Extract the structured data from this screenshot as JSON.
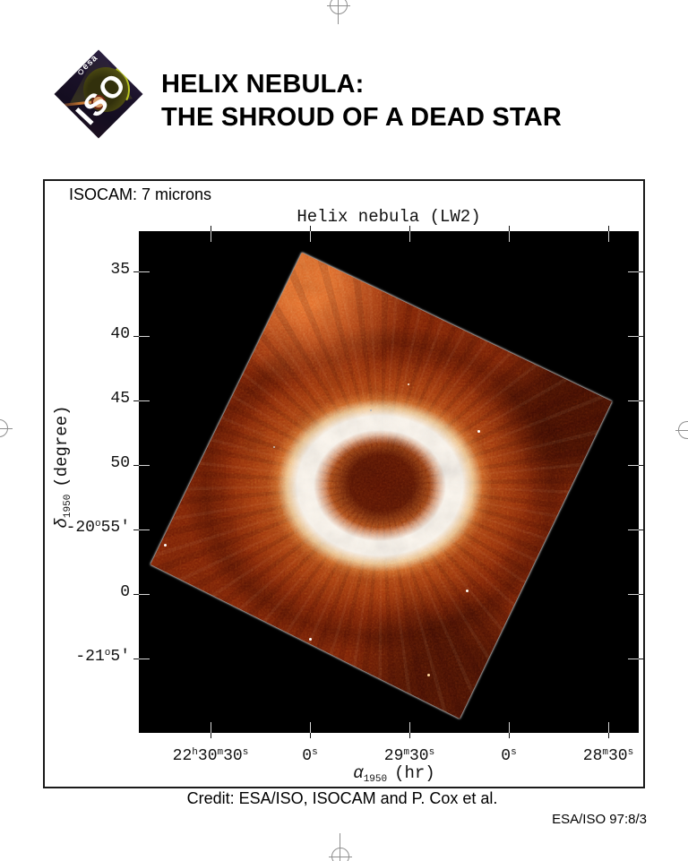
{
  "header": {
    "title_line1": "HELIX NEBULA:",
    "title_line2": "THE SHROUD OF A DEAD STAR"
  },
  "logo": {
    "esa_label": "esa",
    "iso_label": "ISO"
  },
  "figure": {
    "instrument_label": "ISOCAM: 7 microns",
    "plot": {
      "title": "Helix nebula (LW2)",
      "x_axis": {
        "symbol": "α",
        "subscript": "1950",
        "unit": "(hr)",
        "ticks": [
          [
            [
              "22",
              0
            ],
            [
              "h",
              1
            ],
            [
              "30",
              0
            ],
            [
              "m",
              1
            ],
            [
              "30",
              0
            ],
            [
              "s",
              1
            ]
          ],
          [
            [
              "0",
              0
            ],
            [
              "s",
              1
            ]
          ],
          [
            [
              "29",
              0
            ],
            [
              "m",
              1
            ],
            [
              "30",
              0
            ],
            [
              "s",
              1
            ]
          ],
          [
            [
              "0",
              0
            ],
            [
              "s",
              1
            ]
          ],
          [
            [
              "28",
              0
            ],
            [
              "m",
              1
            ],
            [
              "30",
              0
            ],
            [
              "s",
              1
            ]
          ]
        ]
      },
      "y_axis": {
        "symbol": "δ",
        "subscript": "1950",
        "unit": "(degree)",
        "ticks": [
          [
            [
              "35",
              0
            ]
          ],
          [
            [
              "40",
              0
            ]
          ],
          [
            [
              "45",
              0
            ]
          ],
          [
            [
              "50",
              0
            ]
          ],
          [
            [
              "-20",
              0
            ],
            [
              "o",
              1
            ],
            [
              "55'",
              0
            ]
          ],
          [
            [
              "0",
              0
            ]
          ],
          [
            [
              "-21",
              0
            ],
            [
              "o",
              1
            ],
            [
              "5'",
              0
            ]
          ]
        ]
      }
    },
    "credit": "Credit: ESA/ISO, ISOCAM and P. Cox et al."
  },
  "footer": {
    "reference": "ESA/ISO 97:8/3"
  },
  "colors": {
    "page_background": "#ffffff",
    "plot_background": "#000000",
    "nebula_ring": "#ffffff",
    "nebula_mid": "#e06020",
    "nebula_base": "#801f06",
    "logo_background": "#1a1128"
  }
}
